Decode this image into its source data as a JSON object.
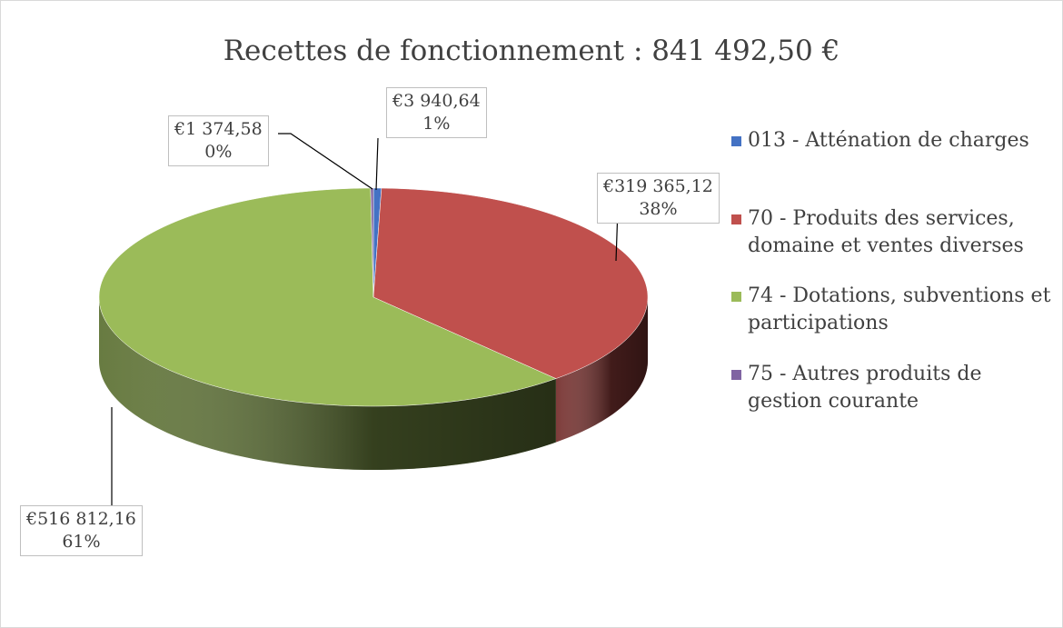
{
  "chart_data": {
    "type": "pie3d",
    "title": "Recettes de fonctionnement : 841 492,50 €",
    "categories": [
      "013 - Atténation de charges",
      "70 - Produits des services, domaine et ventes diverses",
      "74 - Dotations, subventions et participations",
      "75 - Autres produits de gestion courante"
    ],
    "values": [
      3940.64,
      319365.12,
      516812.16,
      1374.58
    ],
    "value_labels": [
      "€3 940,64",
      "€319 365,12",
      "€516 812,16",
      "€1 374,58"
    ],
    "percent_labels": [
      "1%",
      "38%",
      "61%",
      "0%"
    ],
    "colors": [
      "#4472c4",
      "#c0504d",
      "#9bbb59",
      "#8064a2"
    ],
    "legend": "right"
  }
}
